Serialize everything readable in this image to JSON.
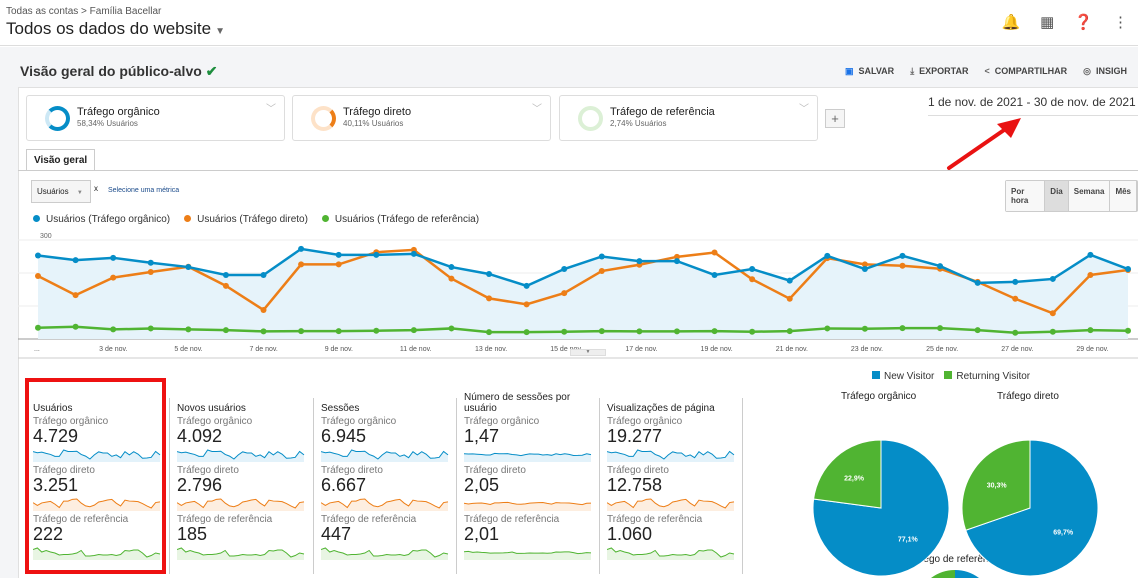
{
  "header": {
    "breadcrumb": "Todas as contas > Família Bacellar",
    "account_view": "Todos os dados do website",
    "icons": [
      "bell-icon",
      "apps-icon",
      "help-icon",
      "more-vert-icon"
    ]
  },
  "page": {
    "title": "Visão geral do público-alvo",
    "actions": [
      {
        "label": "SALVAR",
        "icon": "save-icon"
      },
      {
        "label": "EXPORTAR",
        "icon": "download-icon"
      },
      {
        "label": "COMPARTILHAR",
        "icon": "share-icon"
      },
      {
        "label": "INSIGH",
        "icon": "insights-icon"
      }
    ]
  },
  "segments": [
    {
      "name": "Tráfego orgânico",
      "pct": "58,34% Usuários",
      "color": "#058dc7"
    },
    {
      "name": "Tráfego direto",
      "pct": "40,11% Usuários",
      "color": "#ed7e17"
    },
    {
      "name": "Tráfego de referência",
      "pct": "2,74% Usuários",
      "color": "#50b432"
    }
  ],
  "add_segment": "+",
  "date_range": "1 de nov. de 2021 - 30 de nov. de 2021",
  "tab": "Visão geral",
  "metric_select": "Usuários",
  "metric_remove": "x",
  "metric_add": "Selecione uma métrica",
  "granularity": [
    {
      "label": "Por hora",
      "active": false
    },
    {
      "label": "Dia",
      "active": true
    },
    {
      "label": "Semana",
      "active": false
    },
    {
      "label": "Mês",
      "active": false
    }
  ],
  "chart_data": {
    "type": "line",
    "x": [
      "1 de nov.",
      "2 de nov.",
      "3 de nov.",
      "4 de nov.",
      "5 de nov.",
      "6 de nov.",
      "7 de nov.",
      "8 de nov.",
      "9 de nov.",
      "10 de nov.",
      "11 de nov.",
      "12 de nov.",
      "13 de nov.",
      "14 de nov.",
      "15 de nov.",
      "16 de nov.",
      "17 de nov.",
      "18 de nov.",
      "19 de nov.",
      "20 de nov.",
      "21 de nov.",
      "22 de nov.",
      "23 de nov.",
      "24 de nov.",
      "25 de nov.",
      "26 de nov.",
      "27 de nov.",
      "28 de nov.",
      "29 de nov.",
      "30 de nov."
    ],
    "xticks": [
      "...",
      "3 de nov.",
      "5 de nov.",
      "7 de nov.",
      "9 de nov.",
      "11 de nov.",
      "13 de nov.",
      "15 de nov.",
      "17 de nov.",
      "19 de nov.",
      "21 de nov.",
      "23 de nov.",
      "25 de nov.",
      "27 de nov.",
      "29 de nov."
    ],
    "yticks": [
      "100",
      "200",
      "300"
    ],
    "ylim": [
      0,
      300
    ],
    "series": [
      {
        "name": "Usuários (Tráfego orgânico)",
        "color": "#058dc7",
        "values": [
          253,
          239,
          246,
          231,
          218,
          194,
          194,
          273,
          255,
          255,
          258,
          218,
          197,
          161,
          212,
          250,
          236,
          236,
          194,
          212,
          177,
          252,
          212,
          252,
          221,
          170,
          173,
          182,
          255,
          212
        ]
      },
      {
        "name": "Usuários (Tráfego direto)",
        "color": "#ed7e17",
        "values": [
          191,
          133,
          186,
          203,
          219,
          161,
          88,
          226,
          226,
          263,
          270,
          183,
          123,
          105,
          139,
          206,
          225,
          249,
          262,
          181,
          122,
          245,
          226,
          222,
          213,
          173,
          122,
          78,
          194,
          209
        ]
      },
      {
        "name": "Usuários (Tráfego de referência)",
        "color": "#50b432",
        "values": [
          34,
          37,
          29,
          32,
          29,
          27,
          23,
          24,
          24,
          25,
          27,
          32,
          21,
          21,
          22,
          24,
          23,
          23,
          24,
          22,
          24,
          32,
          31,
          33,
          33,
          27,
          19,
          22,
          27,
          25
        ]
      }
    ]
  },
  "metrics": [
    {
      "title": "Usuários",
      "rows": [
        {
          "seg": "Tráfego orgânico",
          "value": "4.729"
        },
        {
          "seg": "Tráfego direto",
          "value": "3.251"
        },
        {
          "seg": "Tráfego de referência",
          "value": "222"
        }
      ]
    },
    {
      "title": "Novos usuários",
      "rows": [
        {
          "seg": "Tráfego orgânico",
          "value": "4.092"
        },
        {
          "seg": "Tráfego direto",
          "value": "2.796"
        },
        {
          "seg": "Tráfego de referência",
          "value": "185"
        }
      ]
    },
    {
      "title": "Sessões",
      "rows": [
        {
          "seg": "Tráfego orgânico",
          "value": "6.945"
        },
        {
          "seg": "Tráfego direto",
          "value": "6.667"
        },
        {
          "seg": "Tráfego de referência",
          "value": "447"
        }
      ]
    },
    {
      "title": "Número de sessões por usuário",
      "rows": [
        {
          "seg": "Tráfego orgânico",
          "value": "1,47"
        },
        {
          "seg": "Tráfego direto",
          "value": "2,05"
        },
        {
          "seg": "Tráfego de referência",
          "value": "2,01"
        }
      ]
    },
    {
      "title": "Visualizações de página",
      "rows": [
        {
          "seg": "Tráfego orgânico",
          "value": "19.277"
        },
        {
          "seg": "Tráfego direto",
          "value": "12.758"
        },
        {
          "seg": "Tráfego de referência",
          "value": "1.060"
        }
      ]
    }
  ],
  "pies": {
    "legend": [
      {
        "label": "New Visitor",
        "color": "#058dc7"
      },
      {
        "label": "Returning Visitor",
        "color": "#50b432"
      }
    ],
    "charts": [
      {
        "title": "Tráfego orgânico",
        "new": 77.1,
        "returning": 22.9,
        "new_label": "77,1%",
        "returning_label": "22,9%"
      },
      {
        "title": "Tráfego direto",
        "new": 69.7,
        "returning": 30.3,
        "new_label": "69,7%",
        "returning_label": "30,3%"
      },
      {
        "title": "Tráfego de referência"
      }
    ]
  }
}
